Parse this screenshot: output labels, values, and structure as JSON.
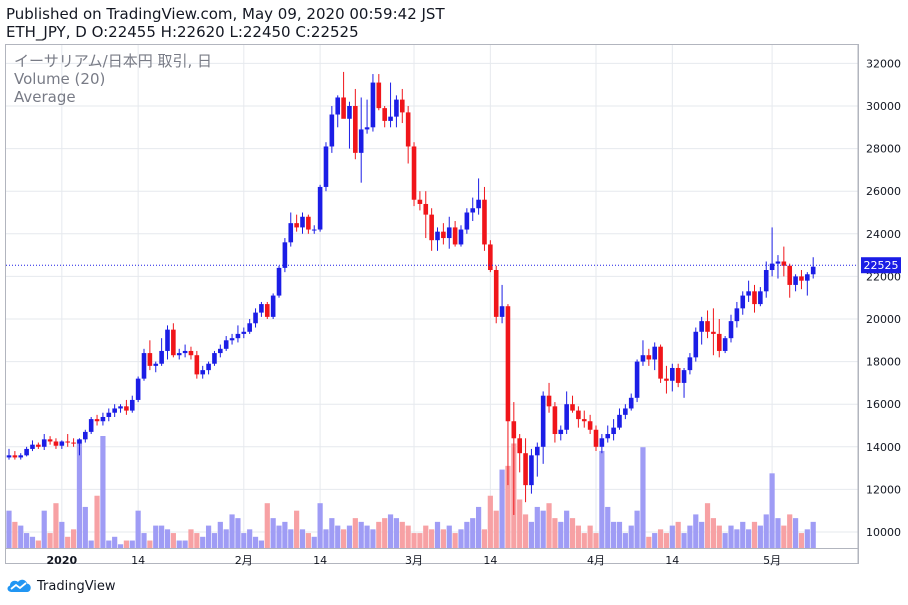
{
  "header": {
    "published": "Published on TradingView.com, May 09, 2020 00:59:42 JST",
    "ohlc": "ETH_JPY, D O:22455 H:22620 L:22450 C:22525"
  },
  "legend": {
    "symbol": "イーサリアム/日本円 取引, 日",
    "volume": "Volume (20)",
    "average": "Average"
  },
  "footer": {
    "brand": "TradingView"
  },
  "colors": {
    "up": "#1b1de6",
    "down": "#f0151a",
    "vol_up": "#9f9cf5",
    "vol_down": "#f7a1a4",
    "grid": "#e6e9ee",
    "price_line": "#1b1de6"
  },
  "chart_data": {
    "type": "candlestick",
    "ylim": [
      9000,
      32500
    ],
    "y_ticks": [
      10000,
      12000,
      14000,
      16000,
      18000,
      20000,
      22000,
      24000,
      26000,
      28000,
      30000,
      32000
    ],
    "y_tick_labels": [
      "10000",
      "12000",
      "14000",
      "16000",
      "18000",
      "20000",
      "22000",
      "24000",
      "26000",
      "28000",
      "30000",
      "32000"
    ],
    "x_ticks": [
      {
        "label": "2020",
        "index": 9,
        "bold": true
      },
      {
        "label": "14",
        "index": 22
      },
      {
        "label": "2月",
        "index": 40
      },
      {
        "label": "14",
        "index": 53
      },
      {
        "label": "3月",
        "index": 69
      },
      {
        "label": "14",
        "index": 82
      },
      {
        "label": "4月",
        "index": 100
      },
      {
        "label": "14",
        "index": 113
      },
      {
        "label": "5月",
        "index": 130
      }
    ],
    "last_price": 22525,
    "last_price_label": "22525",
    "volume_max": 30,
    "candles": [
      [
        13500,
        13900,
        13400,
        13600,
        10
      ],
      [
        13600,
        13800,
        13400,
        13500,
        7
      ],
      [
        13500,
        13700,
        13400,
        13600,
        6
      ],
      [
        13600,
        14000,
        13550,
        13900,
        4
      ],
      [
        13900,
        14300,
        13800,
        14100,
        3
      ],
      [
        14100,
        14200,
        13900,
        14000,
        2
      ],
      [
        14000,
        14600,
        13850,
        14350,
        10
      ],
      [
        14350,
        14500,
        14100,
        14250,
        4
      ],
      [
        14250,
        14400,
        13900,
        14050,
        12
      ],
      [
        14050,
        14300,
        13900,
        14250,
        7
      ],
      [
        14250,
        14600,
        14000,
        14200,
        3
      ],
      [
        14200,
        14400,
        14000,
        14150,
        5
      ],
      [
        14150,
        14400,
        13600,
        14350,
        29
      ],
      [
        14350,
        14800,
        14200,
        14700,
        11
      ],
      [
        14700,
        15400,
        14600,
        15300,
        2
      ],
      [
        15300,
        15500,
        15000,
        15200,
        14
      ],
      [
        15200,
        15600,
        15000,
        15400,
        30
      ],
      [
        15400,
        15800,
        15200,
        15600,
        2
      ],
      [
        15600,
        16000,
        15400,
        15800,
        3
      ],
      [
        15800,
        16000,
        15600,
        15900,
        1
      ],
      [
        15900,
        16200,
        15500,
        15700,
        2
      ],
      [
        15700,
        16400,
        15600,
        16200,
        2
      ],
      [
        16200,
        17300,
        16100,
        17200,
        10
      ],
      [
        17200,
        18600,
        17100,
        18400,
        4
      ],
      [
        18400,
        19000,
        17600,
        17800,
        2
      ],
      [
        17800,
        18000,
        17500,
        17900,
        6
      ],
      [
        17900,
        19100,
        17800,
        18500,
        6
      ],
      [
        18500,
        19700,
        18100,
        19500,
        5
      ],
      [
        19500,
        19800,
        18200,
        18300,
        4
      ],
      [
        18300,
        18600,
        18100,
        18400,
        2
      ],
      [
        18400,
        18800,
        18200,
        18500,
        2
      ],
      [
        18500,
        18700,
        18100,
        18300,
        5
      ],
      [
        18300,
        18500,
        17200,
        17400,
        4
      ],
      [
        17400,
        17800,
        17200,
        17600,
        3
      ],
      [
        17600,
        18000,
        17400,
        17900,
        6
      ],
      [
        17900,
        18500,
        17800,
        18400,
        4
      ],
      [
        18400,
        18800,
        18200,
        18600,
        7
      ],
      [
        18600,
        19200,
        18500,
        19000,
        5
      ],
      [
        19000,
        19300,
        18800,
        19100,
        9
      ],
      [
        19100,
        19700,
        18900,
        19300,
        8
      ],
      [
        19300,
        19600,
        19100,
        19400,
        4
      ],
      [
        19400,
        20000,
        19300,
        19800,
        5
      ],
      [
        19800,
        20500,
        19600,
        20300,
        3
      ],
      [
        20300,
        20800,
        20100,
        20700,
        2
      ],
      [
        20700,
        20800,
        20000,
        20100,
        12
      ],
      [
        20100,
        21200,
        20000,
        21100,
        8
      ],
      [
        21100,
        22500,
        21000,
        22400,
        6
      ],
      [
        22400,
        23800,
        22200,
        23600,
        7
      ],
      [
        23600,
        25000,
        23400,
        24500,
        5
      ],
      [
        24500,
        24900,
        24100,
        24300,
        10
      ],
      [
        24300,
        25000,
        24000,
        24800,
        5
      ],
      [
        24800,
        24900,
        24000,
        24200,
        4
      ],
      [
        24200,
        24400,
        24000,
        24200,
        3
      ],
      [
        24200,
        26300,
        24100,
        26200,
        12
      ],
      [
        26200,
        28300,
        26000,
        28100,
        5
      ],
      [
        28100,
        30000,
        27800,
        29600,
        8
      ],
      [
        29600,
        30500,
        29000,
        30400,
        6
      ],
      [
        30400,
        31600,
        29500,
        29400,
        5
      ],
      [
        29400,
        30200,
        28000,
        30000,
        6
      ],
      [
        30000,
        30800,
        27500,
        27800,
        8
      ],
      [
        27800,
        30400,
        26400,
        28900,
        7
      ],
      [
        28900,
        30300,
        28700,
        29000,
        6
      ],
      [
        29000,
        31500,
        28800,
        31100,
        5
      ],
      [
        31100,
        31500,
        29800,
        29900,
        7
      ],
      [
        29900,
        30000,
        29000,
        29300,
        8
      ],
      [
        29300,
        31100,
        29000,
        29500,
        9
      ],
      [
        29500,
        30500,
        29000,
        30300,
        8
      ],
      [
        30300,
        30800,
        29200,
        29700,
        7
      ],
      [
        29700,
        30000,
        27300,
        28100,
        6
      ],
      [
        28100,
        28300,
        25300,
        25600,
        4
      ],
      [
        25600,
        26000,
        25100,
        25400,
        4
      ],
      [
        25400,
        26000,
        23800,
        24900,
        6
      ],
      [
        24900,
        25200,
        23200,
        23700,
        5
      ],
      [
        23700,
        24300,
        23200,
        24100,
        7
      ],
      [
        24100,
        24500,
        23500,
        23800,
        5
      ],
      [
        23800,
        24800,
        23300,
        24300,
        6
      ],
      [
        24300,
        24600,
        23400,
        23500,
        4
      ],
      [
        23500,
        24400,
        23400,
        24200,
        5
      ],
      [
        24200,
        25200,
        24000,
        25000,
        7
      ],
      [
        25000,
        25700,
        24600,
        25200,
        8
      ],
      [
        25200,
        26600,
        24900,
        25600,
        11
      ],
      [
        25600,
        26200,
        23200,
        23500,
        5
      ],
      [
        23500,
        23700,
        22200,
        22300,
        14
      ],
      [
        22300,
        22500,
        19800,
        20100,
        10
      ],
      [
        20100,
        21600,
        19800,
        20600,
        21
      ],
      [
        20600,
        20700,
        12200,
        15200,
        22
      ],
      [
        15200,
        16100,
        10800,
        14400,
        28
      ],
      [
        14400,
        14600,
        12800,
        13700,
        13
      ],
      [
        13700,
        14400,
        11400,
        12200,
        9
      ],
      [
        12200,
        13900,
        11800,
        13600,
        7
      ],
      [
        13600,
        14200,
        12600,
        14000,
        11
      ],
      [
        14000,
        16600,
        13200,
        16400,
        10
      ],
      [
        16400,
        17000,
        15600,
        15900,
        12
      ],
      [
        15900,
        16100,
        14200,
        14600,
        8
      ],
      [
        14600,
        15000,
        14300,
        14800,
        7
      ],
      [
        14800,
        16600,
        14600,
        16000,
        10
      ],
      [
        16000,
        16400,
        15600,
        15700,
        8
      ],
      [
        15700,
        15900,
        14900,
        15300,
        6
      ],
      [
        15300,
        15700,
        14900,
        15200,
        4
      ],
      [
        15200,
        15500,
        14600,
        14800,
        6
      ],
      [
        14800,
        15000,
        13800,
        14000,
        4
      ],
      [
        14000,
        14600,
        13700,
        14400,
        26
      ],
      [
        14400,
        15000,
        14200,
        14600,
        11
      ],
      [
        14600,
        15300,
        14300,
        14900,
        7
      ],
      [
        14900,
        15800,
        14800,
        15500,
        7
      ],
      [
        15500,
        16000,
        15300,
        15800,
        4
      ],
      [
        15800,
        16500,
        15700,
        16300,
        6
      ],
      [
        16300,
        18100,
        16100,
        18000,
        10
      ],
      [
        18000,
        19000,
        17800,
        18300,
        27
      ],
      [
        18300,
        18600,
        17800,
        18100,
        3
      ],
      [
        18100,
        18900,
        17600,
        18700,
        4
      ],
      [
        18700,
        18800,
        17000,
        17200,
        5
      ],
      [
        17200,
        17800,
        16500,
        17100,
        4
      ],
      [
        17100,
        17900,
        16600,
        17700,
        6
      ],
      [
        17700,
        17900,
        16800,
        17000,
        7
      ],
      [
        17000,
        17700,
        16300,
        17600,
        4
      ],
      [
        17600,
        18400,
        17400,
        18200,
        6
      ],
      [
        18200,
        19600,
        18000,
        19400,
        9
      ],
      [
        19400,
        20100,
        18800,
        19900,
        7
      ],
      [
        19900,
        20400,
        19100,
        19400,
        12
      ],
      [
        19400,
        20500,
        18300,
        19300,
        8
      ],
      [
        19300,
        20000,
        18200,
        18500,
        6
      ],
      [
        18500,
        19200,
        18400,
        19100,
        4
      ],
      [
        19100,
        20200,
        18900,
        19900,
        6
      ],
      [
        19900,
        20800,
        19600,
        20500,
        5
      ],
      [
        20500,
        21300,
        20200,
        21100,
        7
      ],
      [
        21100,
        21800,
        20800,
        21300,
        5
      ],
      [
        21300,
        21600,
        20300,
        20700,
        7
      ],
      [
        20700,
        21500,
        20600,
        21300,
        6
      ],
      [
        21300,
        22700,
        21000,
        22300,
        9
      ],
      [
        22300,
        24300,
        22000,
        22600,
        20
      ],
      [
        22600,
        23000,
        21900,
        22700,
        8
      ],
      [
        22700,
        23400,
        22000,
        22500,
        6
      ],
      [
        22500,
        22600,
        21000,
        21600,
        9
      ],
      [
        21600,
        22100,
        21300,
        22000,
        8
      ],
      [
        22000,
        22300,
        21400,
        21800,
        4
      ],
      [
        21800,
        22200,
        21100,
        22100,
        5
      ],
      [
        22100,
        22900,
        21900,
        22455,
        7
      ]
    ]
  }
}
